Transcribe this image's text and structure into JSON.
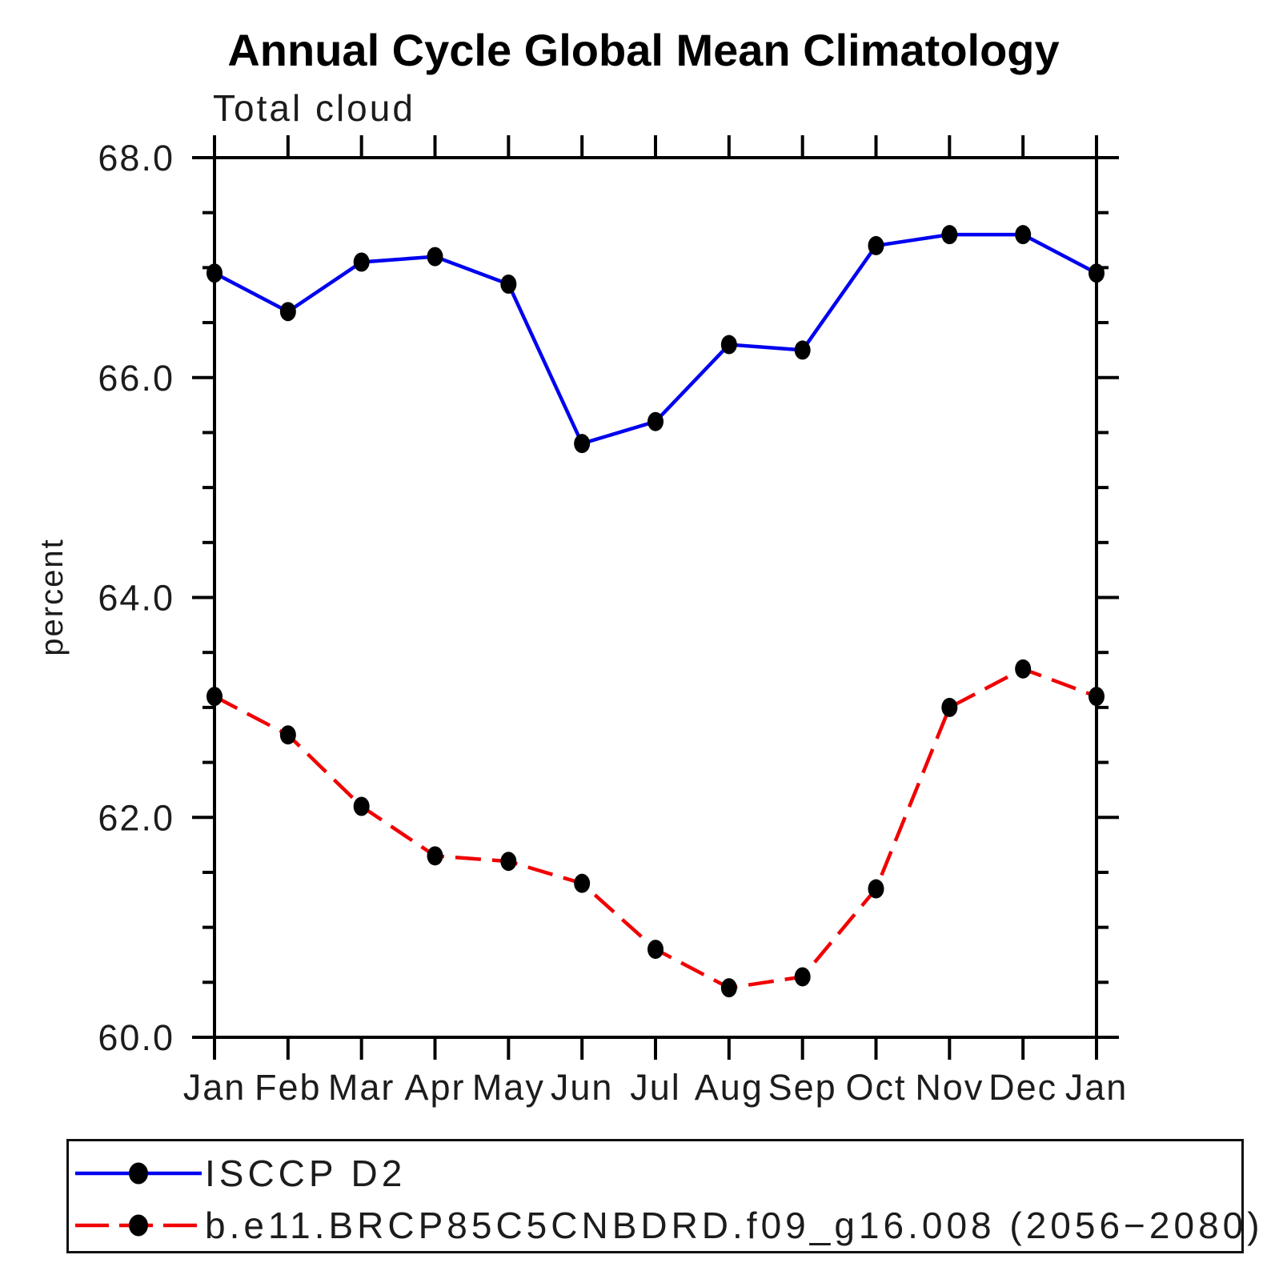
{
  "title": "Annual Cycle Global Mean Climatology",
  "subtitle": "Total cloud",
  "chart_data": {
    "type": "line",
    "title": "Annual Cycle Global Mean Climatology",
    "subtitle": "Total cloud",
    "xlabel": "",
    "ylabel": "percent",
    "ylim": [
      60.0,
      68.0
    ],
    "x_categories": [
      "Jan",
      "Feb",
      "Mar",
      "Apr",
      "May",
      "Jun",
      "Jul",
      "Aug",
      "Sep",
      "Oct",
      "Nov",
      "Dec",
      "Jan"
    ],
    "ytick_major_values": [
      68.0,
      66.0,
      64.0,
      62.0,
      60.0
    ],
    "ytick_major_labels": [
      "68.0",
      "66.0",
      "64.0",
      "62.0",
      "60.0"
    ],
    "ytick_minor_step": 0.5,
    "grid": "off",
    "legend_position": "bottom",
    "series": [
      {
        "name": "ISCCP D2",
        "line_style": "solid",
        "color": "#0000f0",
        "marker": "filled-circle",
        "marker_color": "#000000",
        "values": [
          66.95,
          66.6,
          67.05,
          67.1,
          66.85,
          65.4,
          65.6,
          66.3,
          66.25,
          67.2,
          67.3,
          67.3,
          66.95
        ]
      },
      {
        "name": "b.e11.BRCP85C5CNBDRD.f09_g16.008 (2056−2080)",
        "line_style": "dashed",
        "color": "#f00000",
        "marker": "filled-circle",
        "marker_color": "#000000",
        "values": [
          63.1,
          62.75,
          62.1,
          61.65,
          61.6,
          61.4,
          60.8,
          60.45,
          60.55,
          61.35,
          63.0,
          63.35,
          63.1
        ]
      }
    ]
  },
  "colors": {
    "axis": "#000000",
    "text": "#1c1c1c",
    "background": "#ffffff",
    "series1": "#0000f0",
    "series2": "#f00000",
    "marker": "#000000"
  }
}
